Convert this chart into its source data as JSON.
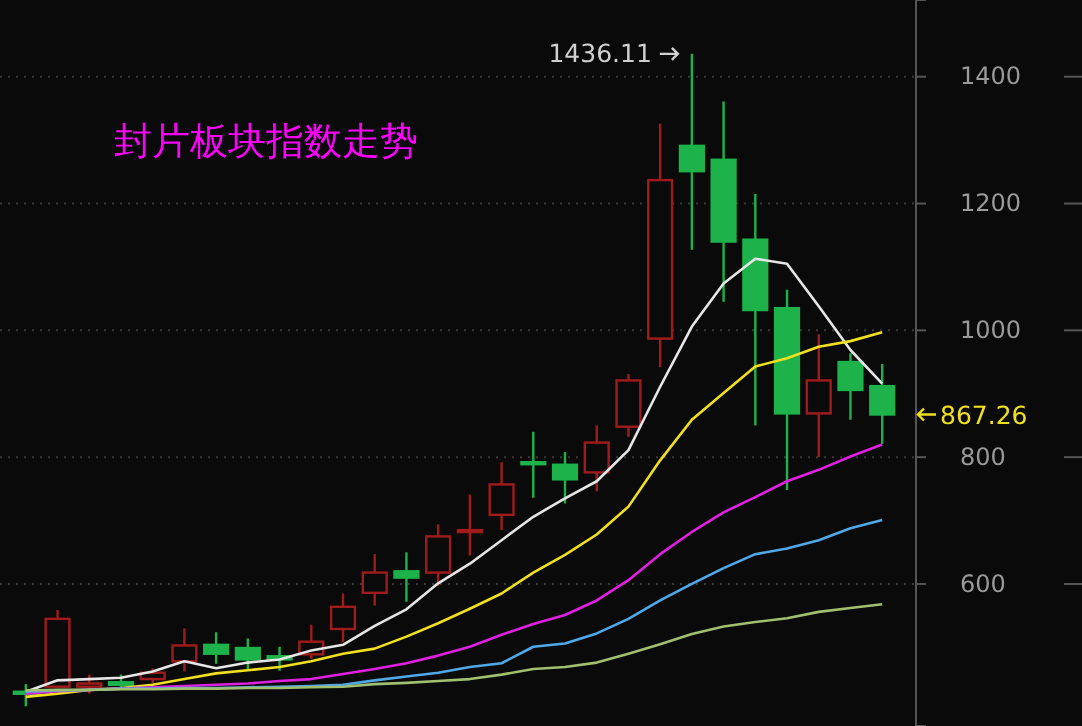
{
  "chart_data": {
    "type": "candlestick",
    "title": "封片板块指数走势",
    "categories": [
      null,
      null,
      null,
      null,
      null,
      null,
      null,
      null,
      null,
      null,
      null,
      null,
      null,
      null,
      null,
      null,
      null,
      null,
      null,
      null,
      null,
      null,
      null,
      null,
      null,
      null,
      null,
      null
    ],
    "ohlc": [
      [
        430,
        442,
        407,
        428
      ],
      [
        438,
        559,
        438,
        545
      ],
      [
        438,
        457,
        427,
        443
      ],
      [
        445,
        457,
        436,
        441
      ],
      [
        450,
        467,
        443,
        460
      ],
      [
        478,
        530,
        462,
        503
      ],
      [
        504,
        524,
        474,
        490
      ],
      [
        499,
        514,
        464,
        481
      ],
      [
        486,
        501,
        463,
        481
      ],
      [
        489,
        536,
        482,
        509
      ],
      [
        529,
        585,
        508,
        564
      ],
      [
        586,
        647,
        566,
        618
      ],
      [
        620,
        650,
        572,
        610
      ],
      [
        618,
        694,
        597,
        675
      ],
      [
        683,
        741,
        645,
        685
      ],
      [
        709,
        792,
        685,
        757
      ],
      [
        792,
        840,
        736,
        790
      ],
      [
        788,
        808,
        727,
        765
      ],
      [
        776,
        850,
        746,
        823
      ],
      [
        848,
        931,
        832,
        921
      ],
      [
        987,
        1326,
        942,
        1237
      ],
      [
        1291,
        1436.11,
        1127,
        1251
      ],
      [
        1269,
        1361,
        1045,
        1140
      ],
      [
        1143,
        1215,
        850,
        1032
      ],
      [
        1035,
        1064,
        748,
        869
      ],
      [
        869,
        994,
        800,
        921
      ],
      [
        950,
        964,
        859,
        906
      ],
      [
        912,
        947,
        821,
        867.26
      ]
    ],
    "series": [
      {
        "type": "line",
        "color": "#e6e6e6",
        "values": [
          430,
          448,
          450,
          452,
          462,
          478,
          467,
          476,
          481,
          495,
          504,
          534,
          560,
          601,
          632,
          669,
          706,
          735,
          762,
          811,
          911,
          1006,
          1074,
          1113,
          1105,
          1038,
          969,
          916
        ]
      },
      {
        "type": "line",
        "color": "#f0e020",
        "values": [
          422,
          427,
          433,
          436,
          441,
          450,
          459,
          464,
          469,
          478,
          490,
          498,
          517,
          538,
          561,
          585,
          618,
          646,
          678,
          722,
          795,
          859,
          901,
          943,
          956,
          974,
          983,
          997
        ]
      },
      {
        "type": "line",
        "color": "#e020e0",
        "values": [
          427,
          431,
          433,
          435,
          437,
          439,
          441,
          443,
          447,
          450,
          458,
          466,
          475,
          487,
          501,
          520,
          537,
          551,
          574,
          606,
          647,
          682,
          713,
          737,
          762,
          780,
          801,
          820
        ]
      },
      {
        "type": "line",
        "color": "#50a8e8",
        "values": [
          430,
          432,
          433,
          435,
          435,
          436,
          436,
          437,
          438,
          439,
          441,
          448,
          454,
          460,
          469,
          475,
          501,
          506,
          522,
          545,
          574,
          600,
          625,
          647,
          656,
          669,
          688,
          701
        ]
      },
      {
        "type": "line",
        "color": "#a0c070",
        "values": [
          432,
          433,
          433,
          434,
          434,
          435,
          435,
          436,
          436,
          437,
          438,
          442,
          444,
          447,
          450,
          457,
          466,
          469,
          476,
          490,
          505,
          521,
          533,
          540,
          546,
          556,
          562,
          568
        ]
      }
    ],
    "ylim": [
      376,
      1521
    ],
    "yticks": [
      600,
      800,
      1000,
      1200,
      1400
    ],
    "grid": "y",
    "marker": "none",
    "line_style": "solid",
    "annotations": [
      "1436.11",
      "867.26"
    ]
  }
}
